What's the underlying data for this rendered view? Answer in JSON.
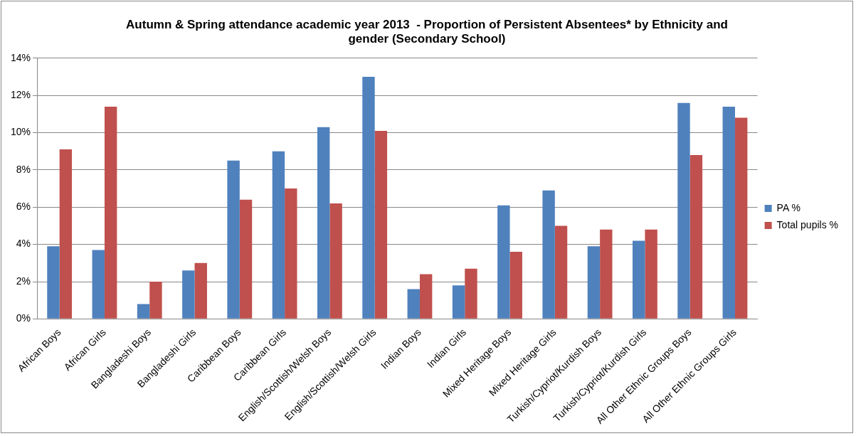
{
  "chart_data": {
    "type": "bar",
    "title": "Autumn & Spring attendance academic year 2013  - Proportion of Persistent Absentees* by Ethnicity and gender (Secondary School)",
    "categories": [
      "African Boys",
      "African Girls",
      "Bangladeshi Boys",
      "Bangladeshi Girls",
      "Caribbean Boys",
      "Caribbean Girls",
      "English/Scottish/Welsh Boys",
      "English/Scottish/Welsh Girls",
      "Indian Boys",
      "Indian Girls",
      "Mixed Heritage Boys",
      "Mixed Heritage Girls",
      "Turkish/Cypriot/Kurdish Boys",
      "Turkish/Cypriot/Kurdish Girls",
      "All Other Ethnic Groups Boys",
      "All Other Ethnic Groups Girls"
    ],
    "series": [
      {
        "name": "PA %",
        "color": "#4f81bd",
        "values": [
          3.9,
          3.7,
          0.8,
          2.6,
          8.5,
          9.0,
          10.3,
          13.0,
          1.6,
          1.8,
          6.1,
          6.9,
          3.9,
          4.2,
          11.6,
          11.4
        ]
      },
      {
        "name": "Total pupils %",
        "color": "#c0504d",
        "values": [
          9.1,
          11.4,
          2.0,
          3.0,
          6.4,
          7.0,
          6.2,
          10.1,
          2.4,
          2.7,
          3.6,
          5.0,
          4.8,
          4.8,
          8.8,
          10.8
        ]
      }
    ],
    "ylim": [
      0,
      14
    ],
    "yticks": [
      {
        "value": 0,
        "label": "0%"
      },
      {
        "value": 2,
        "label": "2%"
      },
      {
        "value": 4,
        "label": "4%"
      },
      {
        "value": 6,
        "label": "6%"
      },
      {
        "value": 8,
        "label": "8%"
      },
      {
        "value": 10,
        "label": "10%"
      },
      {
        "value": 12,
        "label": "12%"
      },
      {
        "value": 14,
        "label": "14%"
      }
    ],
    "grid": "y",
    "legend": "right"
  }
}
